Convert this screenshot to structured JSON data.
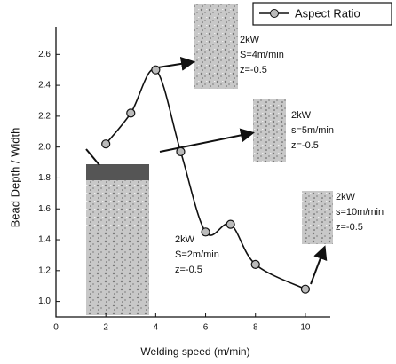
{
  "chart_data": {
    "type": "line",
    "x_label": "Welding speed (m/min)",
    "y_label": "Bead Depth / Width",
    "xlim": [
      0,
      11
    ],
    "ylim": [
      0.9,
      2.78
    ],
    "xticks": [
      0,
      2,
      4,
      6,
      8,
      10
    ],
    "yticks": [
      {
        "value": 1.0,
        "label": "1.0"
      },
      1.2,
      1.4,
      1.6,
      1.8,
      {
        "value": 2.0,
        "label": "2.0"
      },
      2.2,
      2.4,
      2.6
    ],
    "legend_position": "upper right",
    "series": [
      {
        "name": "Aspect Ratio",
        "color": "#111111",
        "x": [
          2,
          3,
          4,
          5,
          6,
          7,
          8,
          10
        ],
        "values": [
          2.02,
          2.22,
          2.5,
          1.97,
          1.45,
          1.5,
          1.24,
          1.08
        ]
      }
    ],
    "annotations": [
      {
        "lines": [
          "2kW",
          "S=2m/min",
          "z=-0.5"
        ]
      },
      {
        "lines": [
          "2kW",
          "S=4m/min",
          "z=-0.5"
        ]
      },
      {
        "lines": [
          "2kW",
          "s=5m/min",
          "z=-0.5"
        ]
      },
      {
        "lines": [
          "2kW",
          "s=10m/min",
          "z=-0.5"
        ]
      }
    ]
  }
}
